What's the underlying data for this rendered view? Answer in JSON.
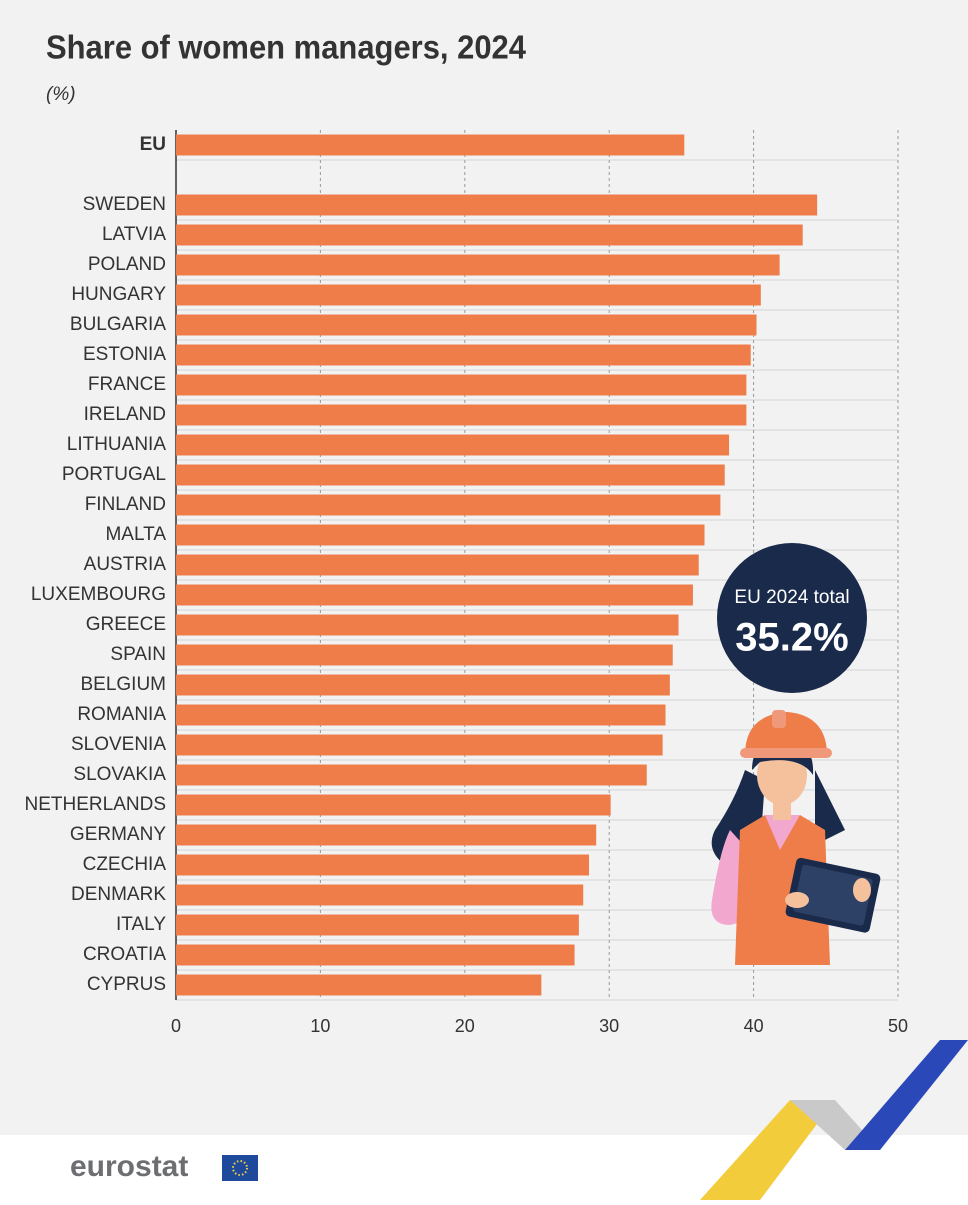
{
  "chart_data": {
    "type": "bar",
    "orientation": "horizontal",
    "title": "Share of women managers, 2024",
    "subtitle": "(%)",
    "categories": [
      "EU",
      "SWEDEN",
      "LATVIA",
      "POLAND",
      "HUNGARY",
      "BULGARIA",
      "ESTONIA",
      "FRANCE",
      "IRELAND",
      "LITHUANIA",
      "PORTUGAL",
      "FINLAND",
      "MALTA",
      "AUSTRIA",
      "LUXEMBOURG",
      "GREECE",
      "SPAIN",
      "BELGIUM",
      "ROMANIA",
      "SLOVENIA",
      "SLOVAKIA",
      "NETHERLANDS",
      "GERMANY",
      "CZECHIA",
      "DENMARK",
      "ITALY",
      "CROATIA",
      "CYPRUS"
    ],
    "values": [
      35.2,
      44.4,
      43.4,
      41.8,
      40.5,
      40.2,
      39.8,
      39.5,
      39.5,
      38.3,
      38.0,
      37.7,
      36.6,
      36.2,
      35.8,
      34.8,
      34.4,
      34.2,
      33.9,
      33.7,
      32.6,
      30.1,
      29.1,
      28.6,
      28.2,
      27.9,
      27.6,
      25.3
    ],
    "color": "#ee7d4a",
    "xlim": [
      0,
      50
    ],
    "xticks": [
      0,
      10,
      20,
      30,
      40,
      50
    ],
    "grid": true,
    "annotation": {
      "label": "EU 2024 total",
      "value_label": "35.2%"
    },
    "source": "eurostat"
  }
}
